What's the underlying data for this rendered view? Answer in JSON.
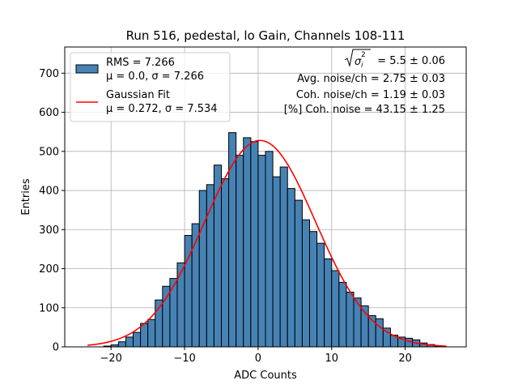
{
  "chart_data": {
    "type": "bar",
    "title": "Run 516, pedestal, lo Gain, Channels 108-111",
    "xlabel": "ADC Counts",
    "ylabel": "Entries",
    "xlim": [
      -26.3,
      28.3
    ],
    "ylim": [
      0,
      767
    ],
    "grid": true,
    "xticks": [
      -20,
      -10,
      0,
      10,
      20
    ],
    "yticks": [
      0,
      100,
      200,
      300,
      400,
      500,
      600,
      700
    ],
    "bin_width": 1,
    "bin_starts": [
      -21,
      -20,
      -19,
      -18,
      -17,
      -16,
      -15,
      -14,
      -13,
      -12,
      -11,
      -10,
      -9,
      -8,
      -7,
      -6,
      -5,
      -4,
      -3,
      -2,
      -1,
      0,
      1,
      2,
      3,
      4,
      5,
      6,
      7,
      8,
      9,
      10,
      11,
      12,
      13,
      14,
      15,
      16,
      17,
      18,
      19,
      20,
      21,
      22,
      23,
      24
    ],
    "counts": [
      2,
      5,
      13,
      25,
      37,
      60,
      70,
      120,
      155,
      175,
      215,
      285,
      315,
      400,
      415,
      465,
      430,
      548,
      490,
      535,
      525,
      490,
      500,
      435,
      460,
      405,
      375,
      325,
      295,
      265,
      225,
      195,
      165,
      140,
      125,
      105,
      80,
      72,
      48,
      30,
      25,
      22,
      18,
      10,
      6,
      2
    ],
    "series": [
      {
        "name": "RMS = 7.266",
        "subname": "μ = 0.0, σ = 7.266",
        "type": "histogram",
        "color": "#4682b4",
        "edgecolor": "#000000"
      },
      {
        "name": "Gaussian Fit",
        "subname": "μ = 0.272, σ = 7.534",
        "type": "line",
        "color": "#ff0000",
        "mu": 0.272,
        "sigma": 7.534,
        "amplitude": 528,
        "x_range": [
          -23.2,
          25.6
        ]
      }
    ],
    "legend": "top-left",
    "annotations": {
      "sigma_i_value": "= 5.5 ± 0.06",
      "avg_noise": "Avg. noise/ch = 2.75 ± 0.03",
      "coh_noise": "Coh. noise/ch = 1.19 ± 0.03",
      "pct_coh_noise": "[%] Coh. noise = 43.15 ± 1.25"
    }
  }
}
